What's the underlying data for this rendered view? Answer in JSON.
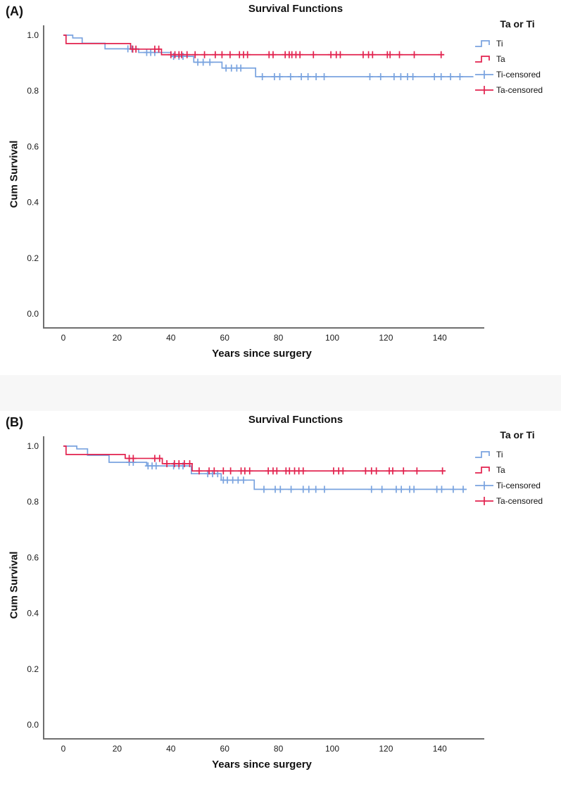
{
  "colors": {
    "ti_blue": "#79A3DF",
    "ta_red": "#E2224E",
    "axis_gray": "#6F6F6F"
  },
  "panels": [
    {
      "label": "(A)",
      "title": "Survival Functions",
      "x_label": "Years since surgery",
      "y_label": "Cum Survival",
      "legend": {
        "title": "Ta or Ti",
        "items": [
          {
            "label": "Ti",
            "swatch": "step",
            "color_key": "ti_blue"
          },
          {
            "label": "Ta",
            "swatch": "step",
            "color_key": "ta_red"
          },
          {
            "label": "Ti-censored",
            "swatch": "plus",
            "color_key": "ti_blue"
          },
          {
            "label": "Ta-censored",
            "swatch": "plus",
            "color_key": "ta_red"
          }
        ]
      },
      "chart_data": {
        "type": "line",
        "subtype": "kaplan-meier-step",
        "title": "Survival Functions",
        "xlabel": "Years since surgery",
        "ylabel": "Cum Survival",
        "xlim": [
          -7,
          157
        ],
        "ylim": [
          0.0,
          1.05
        ],
        "grid": false,
        "legend_position": "right",
        "x_ticks": [
          0,
          20,
          40,
          60,
          80,
          100,
          120,
          140
        ],
        "y_ticks": [
          "0.0",
          "0.2",
          "0.4",
          "0.6",
          "0.8",
          "1.0"
        ],
        "series": [
          {
            "name": "Ti",
            "color_key": "ti_blue",
            "steps": [
              [
                0,
                1.0
              ],
              [
                3.5,
                0.99
              ],
              [
                7,
                0.971
              ],
              [
                15.5,
                0.951
              ],
              [
                28,
                0.938
              ],
              [
                40,
                0.924
              ],
              [
                48.5,
                0.903
              ],
              [
                59,
                0.882
              ],
              [
                71.5,
                0.851
              ]
            ],
            "end_x": 152.5,
            "censored_x": [
              24,
              25.5,
              31,
              32.5,
              34,
              41,
              43,
              44.5,
              50,
              52,
              54.5,
              60.5,
              62.5,
              64.5,
              66,
              74,
              78.5,
              80.5,
              84.5,
              88.5,
              91,
              94,
              97,
              114,
              118,
              123,
              125.5,
              128,
              130,
              138,
              140.5,
              144,
              147.5
            ]
          },
          {
            "name": "Ta",
            "color_key": "ta_red",
            "steps": [
              [
                0,
                1.0
              ],
              [
                1,
                0.97
              ],
              [
                25,
                0.95
              ],
              [
                36.5,
                0.93
              ]
            ],
            "end_x": 141.5,
            "censored_x": [
              25.8,
              27,
              34,
              35.5,
              40,
              41.5,
              43,
              44,
              46,
              49,
              52.5,
              56.5,
              59,
              62,
              65.5,
              67,
              68.5,
              76.5,
              78,
              82.5,
              84,
              85,
              86.5,
              88,
              93,
              99.5,
              101.5,
              103,
              111.5,
              113.5,
              115,
              120.5,
              121.5,
              125,
              130.5,
              140.5
            ]
          }
        ]
      }
    },
    {
      "label": "(B)",
      "title": "Survival Functions",
      "x_label": "Years since surgery",
      "y_label": "Cum Survival",
      "legend": {
        "title": "Ta or Ti",
        "items": [
          {
            "label": "Ti",
            "swatch": "step",
            "color_key": "ti_blue"
          },
          {
            "label": "Ta",
            "swatch": "step",
            "color_key": "ta_red"
          },
          {
            "label": "Ti-censored",
            "swatch": "plus",
            "color_key": "ti_blue"
          },
          {
            "label": "Ta-censored",
            "swatch": "plus",
            "color_key": "ta_red"
          }
        ]
      },
      "chart_data": {
        "type": "line",
        "subtype": "kaplan-meier-step",
        "title": "Survival Functions",
        "xlabel": "Years since surgery",
        "ylabel": "Cum Survival",
        "xlim": [
          -7,
          157
        ],
        "ylim": [
          0.0,
          1.05
        ],
        "grid": false,
        "legend_position": "right",
        "x_ticks": [
          0,
          20,
          40,
          60,
          80,
          100,
          120,
          140
        ],
        "y_ticks": [
          "0.0",
          "0.2",
          "0.4",
          "0.6",
          "0.8",
          "1.0"
        ],
        "series": [
          {
            "name": "Ti",
            "color_key": "ti_blue",
            "steps": [
              [
                0,
                1.0
              ],
              [
                5,
                0.99
              ],
              [
                9,
                0.967
              ],
              [
                17,
                0.942
              ],
              [
                31,
                0.929
              ],
              [
                47.6,
                0.901
              ],
              [
                58.7,
                0.878
              ],
              [
                71,
                0.845
              ]
            ],
            "end_x": 150,
            "censored_x": [
              24.5,
              26,
              31.5,
              33,
              34.5,
              41,
              43,
              44.5,
              53.7,
              55.5,
              57.4,
              59.5,
              61,
              63,
              65,
              67,
              74.6,
              78.8,
              80.7,
              84.7,
              89.2,
              91.3,
              93.9,
              97.1,
              114.6,
              118.5,
              123.8,
              125.7,
              128.8,
              130.4,
              138.9,
              140.7,
              145,
              148.7
            ]
          },
          {
            "name": "Ta",
            "color_key": "ta_red",
            "steps": [
              [
                0,
                1.0
              ],
              [
                1,
                0.97
              ],
              [
                23,
                0.956
              ],
              [
                36.8,
                0.937
              ],
              [
                47.9,
                0.911
              ]
            ],
            "end_x": 142,
            "censored_x": [
              24.5,
              26,
              34,
              35.8,
              38.5,
              41.3,
              43,
              45,
              47,
              50.5,
              54.2,
              56.1,
              59.5,
              62.2,
              66.1,
              67.5,
              69.3,
              76.2,
              78,
              79.4,
              82.8,
              84.1,
              86,
              87.6,
              89.2,
              100.5,
              102.4,
              104,
              112.4,
              114.6,
              116.4,
              121.2,
              122.5,
              126.5,
              131.5,
              141
            ]
          }
        ]
      }
    }
  ]
}
